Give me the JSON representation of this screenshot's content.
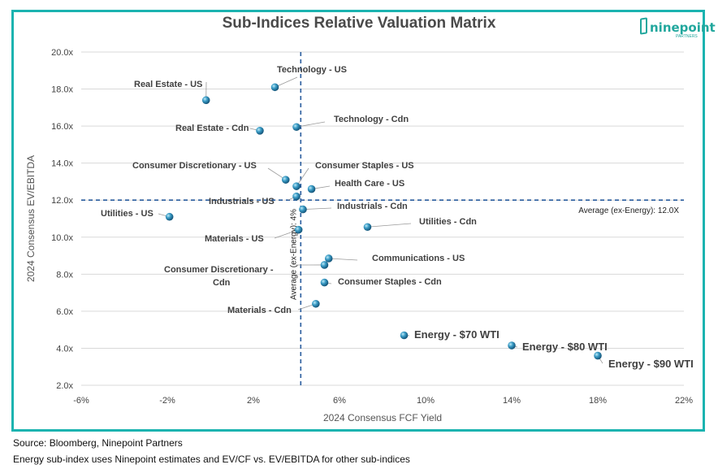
{
  "chart_data": {
    "type": "scatter",
    "title": "Sub-Indices Relative Valuation Matrix",
    "xlabel": "2024 Consensus FCF Yield",
    "ylabel": "2024 Consensus EV/EBITDA",
    "xlim": [
      -6,
      22
    ],
    "ylim": [
      2.0,
      20.0
    ],
    "x_ticks": [
      -6,
      -2,
      2,
      6,
      10,
      14,
      18,
      22
    ],
    "x_tick_labels": [
      "-6%",
      "-2%",
      "2%",
      "6%",
      "10%",
      "14%",
      "18%",
      "22%"
    ],
    "y_ticks": [
      2,
      4,
      6,
      8,
      10,
      12,
      14,
      16,
      18,
      20
    ],
    "y_tick_labels": [
      "2.0x",
      "4.0x",
      "6.0x",
      "8.0x",
      "10.0x",
      "12.0x",
      "14.0x",
      "16.0x",
      "18.0x",
      "20.0x"
    ],
    "grid": "horizontal",
    "avg_x": 4.2,
    "avg_x_label": "Average (ex-Energy): 4%",
    "avg_y": 12.0,
    "avg_y_label": "Average (ex-Energy): 12.0X",
    "points": [
      {
        "label": "Technology - US",
        "x": 3.0,
        "y": 18.1
      },
      {
        "label": "Real Estate - US",
        "x": -0.2,
        "y": 17.4
      },
      {
        "label": "Technology - Cdn",
        "x": 4.0,
        "y": 15.95
      },
      {
        "label": "Real Estate - Cdn",
        "x": 2.3,
        "y": 15.75
      },
      {
        "label": "Consumer Discretionary - US",
        "x": 3.5,
        "y": 13.1
      },
      {
        "label": "Consumer Staples - US",
        "x": 4.0,
        "y": 12.75
      },
      {
        "label": "Health Care - US",
        "x": 4.7,
        "y": 12.6
      },
      {
        "label": "Industrials - US",
        "x": 4.0,
        "y": 12.2
      },
      {
        "label": "Utilities - US",
        "x": -1.9,
        "y": 11.1
      },
      {
        "label": "Industrials - Cdn",
        "x": 4.3,
        "y": 11.5
      },
      {
        "label": "Utilities - Cdn",
        "x": 7.3,
        "y": 10.55
      },
      {
        "label": "Materials - US",
        "x": 4.1,
        "y": 10.4
      },
      {
        "label": "Communications - US",
        "x": 5.5,
        "y": 8.85
      },
      {
        "label": "Consumer Discretionary - Cdn",
        "x": 5.3,
        "y": 8.5
      },
      {
        "label": "Consumer Staples - Cdn",
        "x": 5.3,
        "y": 7.55
      },
      {
        "label": "Materials - Cdn",
        "x": 4.9,
        "y": 6.4
      },
      {
        "label": "Energy - $70 WTI",
        "x": 9.0,
        "y": 4.7
      },
      {
        "label": "Energy - $80 WTI",
        "x": 14.0,
        "y": 4.15
      },
      {
        "label": "Energy - $90 WTI",
        "x": 18.0,
        "y": 3.6
      }
    ]
  },
  "logo": {
    "word": "ninepoint",
    "sub": "PARTNERS"
  },
  "footer": {
    "source": "Source: Bloomberg, Ninepoint Partners",
    "note": "Energy sub-index uses Ninepoint estimates and EV/CF vs. EV/EBITDA for other sub-indices"
  },
  "colors": {
    "marker": "#2a8fb8",
    "avg_line": "#2a5d9e",
    "frame": "#1bb3b0",
    "grid": "#d9d9d9"
  }
}
